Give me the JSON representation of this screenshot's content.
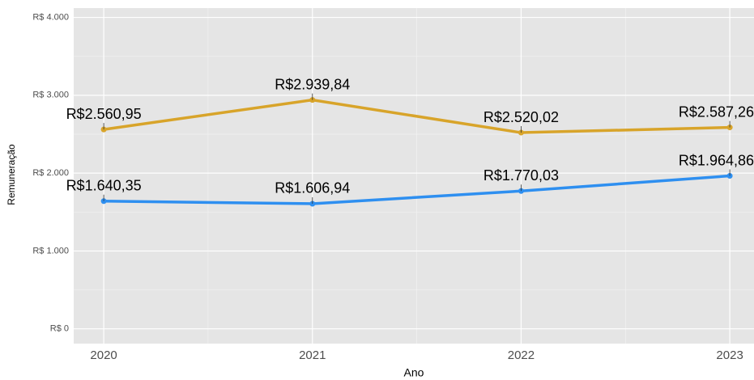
{
  "chart_data": {
    "type": "line",
    "x_label": "Ano",
    "y_label": "Remuneração",
    "x": [
      2020,
      2021,
      2022,
      2023
    ],
    "series": [
      {
        "color": "#d8a42a",
        "values": [
          2560.95,
          2939.84,
          2520.02,
          2587.26
        ],
        "value_labels": [
          "R$2.560,95",
          "R$2.939,84",
          "R$2.520,02",
          "R$2.587,26"
        ]
      },
      {
        "color": "#2e8ff0",
        "values": [
          1640.35,
          1606.94,
          1770.03,
          1964.86
        ],
        "value_labels": [
          "R$1.640,35",
          "R$1.606,94",
          "R$1.770,03",
          "R$1.964,86"
        ]
      }
    ],
    "xlim": [
      2019.856,
      2023.116
    ],
    "xticks": [
      2020,
      2021,
      2022,
      2023
    ],
    "ylim": [
      -190,
      4120
    ],
    "yticks": [
      {
        "value": 0,
        "label": "R$ 0"
      },
      {
        "value": 1000,
        "label": "R$ 1.000"
      },
      {
        "value": 2000,
        "label": "R$ 2.000"
      },
      {
        "value": 3000,
        "label": "R$ 3.000"
      },
      {
        "value": 4000,
        "label": "R$ 4.000"
      }
    ],
    "grid": true
  }
}
